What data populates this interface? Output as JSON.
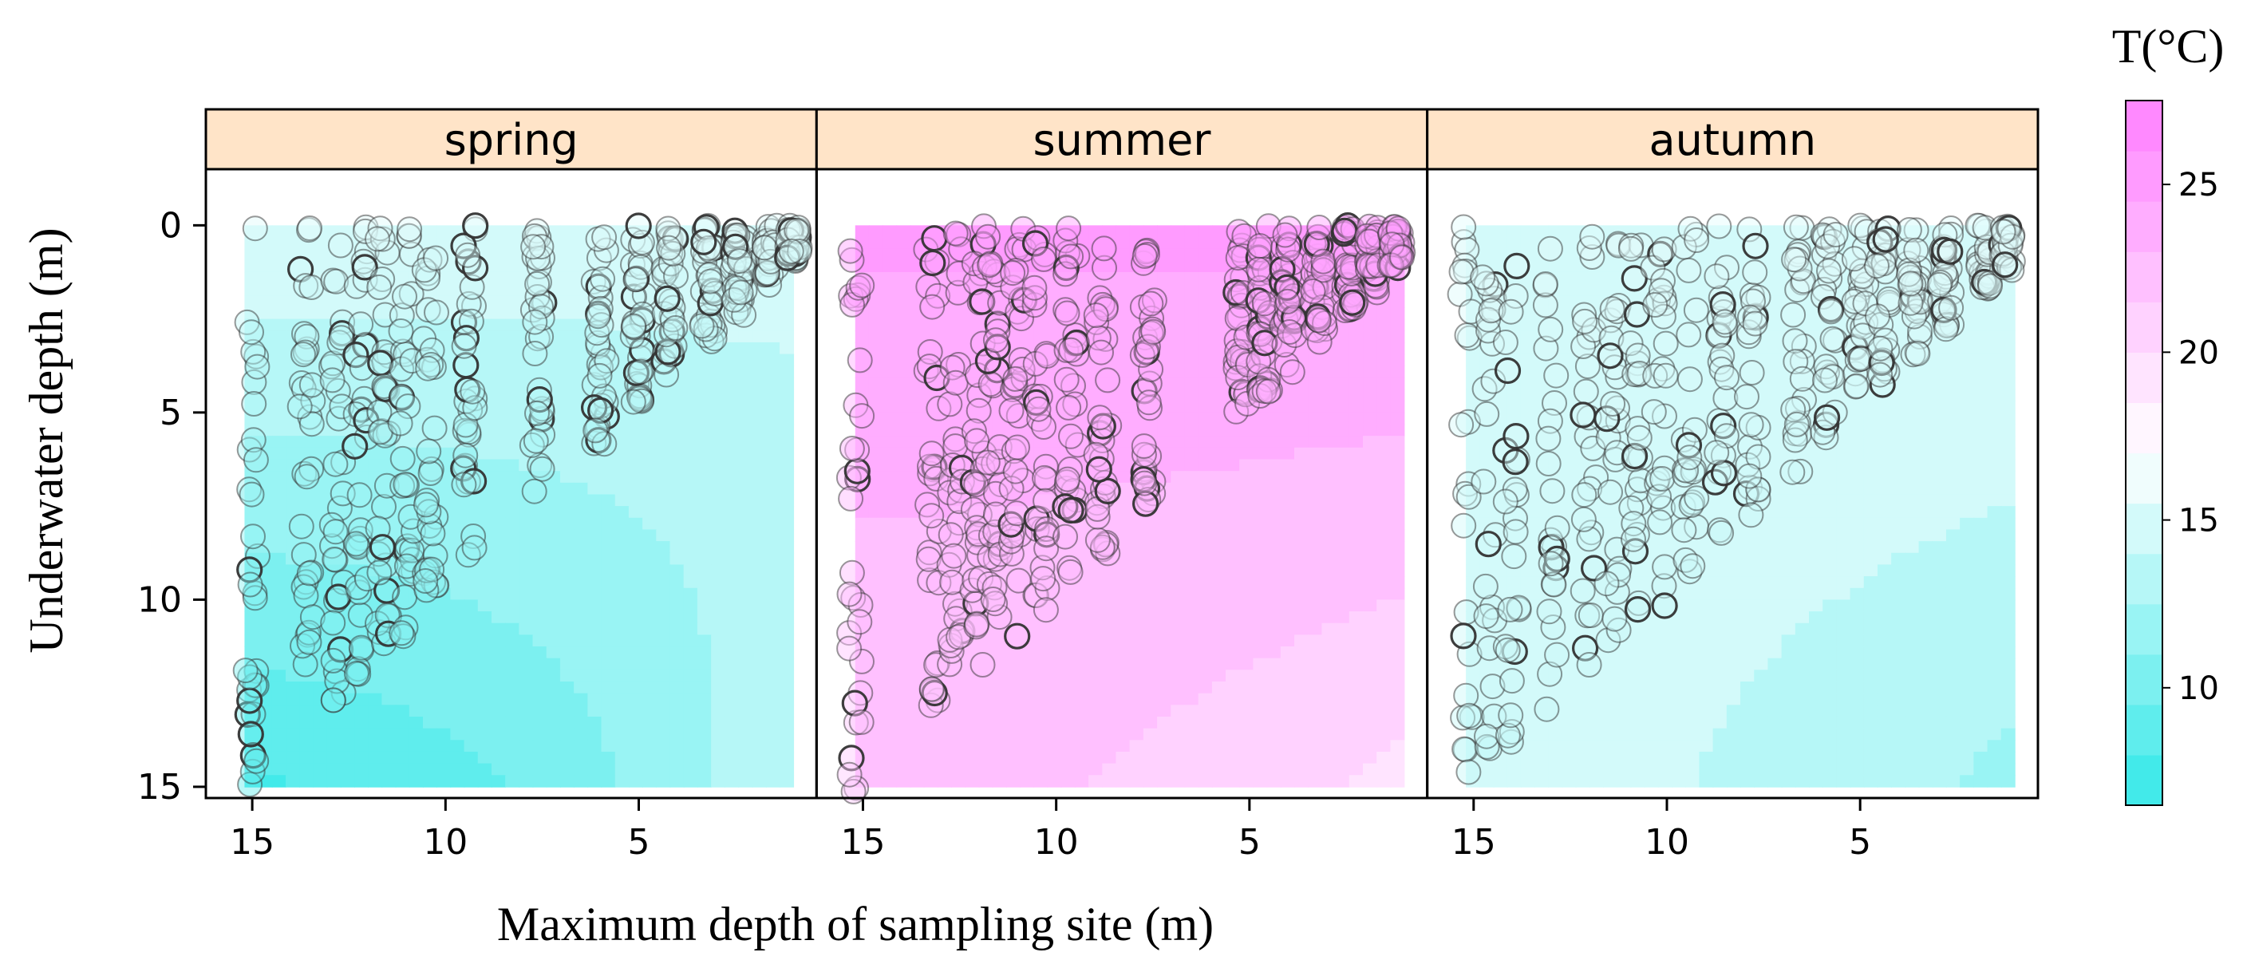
{
  "chart_data": {
    "type": "scatter",
    "layout": "faceted-filled-contour",
    "facets": [
      {
        "name": "spring",
        "label": "spring",
        "contour": {
          "top_value": 15.5,
          "bottom_value": 9.0,
          "deep_corner_value": 8.0,
          "shallow_corner_value": 14.0
        },
        "site_depths": [
          15,
          13.6,
          12.8,
          12.2,
          11.6,
          11.0,
          10.4,
          9.4,
          7.6,
          6.0,
          5.0,
          4.2,
          3.2,
          2.4,
          1.6,
          1.0
        ],
        "points_total": 520
      },
      {
        "name": "summer",
        "label": "summer",
        "contour": {
          "top_value": 25.0,
          "bottom_value": 21.5,
          "deep_corner_value": 22.0,
          "shallow_corner_value": 19.5
        },
        "site_depths": [
          15.2,
          13.2,
          12.6,
          12.0,
          11.6,
          11.0,
          10.4,
          9.6,
          8.8,
          7.6,
          5.2,
          4.6,
          4.0,
          3.2,
          2.4,
          1.8,
          1.2
        ],
        "points_total": 560
      },
      {
        "name": "autumn",
        "label": "autumn",
        "contour": {
          "top_value": 15.5,
          "bottom_value": 14.0,
          "deep_corner_value": 14.5,
          "shallow_corner_value": 12.0
        },
        "site_depths": [
          15.2,
          14.6,
          14.0,
          13.0,
          12.0,
          11.4,
          10.8,
          10.2,
          9.4,
          8.6,
          7.8,
          6.6,
          5.8,
          5.0,
          4.4,
          3.6,
          2.8,
          1.8,
          1.2
        ],
        "points_total": 500
      }
    ],
    "x": {
      "label": "Maximum depth of sampling site (m)",
      "range": [
        16.2,
        0.4
      ],
      "ticks": [
        15,
        10,
        5
      ],
      "reversed": true
    },
    "y": {
      "label": "Underwater depth (m)",
      "range": [
        -1.5,
        15.3
      ],
      "ticks": [
        0,
        5,
        10,
        15
      ],
      "reversed": true
    },
    "colorbar": {
      "title": "T(°C)",
      "range": [
        6.5,
        27.5
      ],
      "ticks": [
        10,
        15,
        20,
        25
      ],
      "levels": [
        6.5,
        8,
        9.5,
        11,
        12.5,
        14,
        15.5,
        17,
        18.5,
        20,
        21.5,
        23,
        24.5,
        26,
        27.5
      ],
      "color_low": "#33e8e8",
      "color_mid": "#ffffff",
      "color_high": "#ff80ff",
      "mid_value": 17.0
    },
    "marker": {
      "shape": "circle",
      "fill": "semi-transparent by temperature",
      "stroke": "#333333"
    },
    "strip_color": "#ffe4c8",
    "grid": false,
    "legend": "colorbar-right"
  }
}
